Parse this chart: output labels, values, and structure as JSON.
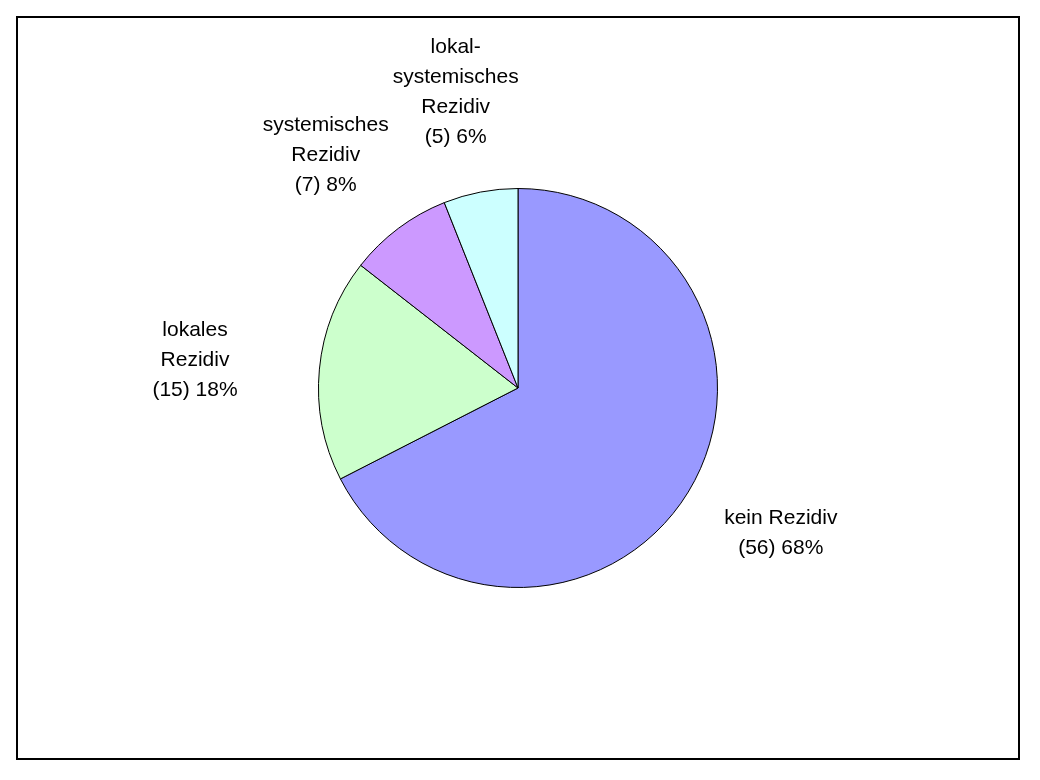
{
  "chart_data": {
    "type": "pie",
    "categories": [
      "kein Rezidiv",
      "lokales Rezidiv",
      "systemisches Rezidiv",
      "lokal-systemisches Rezidiv"
    ],
    "values": [
      56,
      15,
      7,
      5
    ],
    "value_labels": [
      "(56) 68%",
      "(15) 18%",
      "(7) 8%",
      "(5) 6%"
    ],
    "colors": [
      "#9999ff",
      "#ccffcc",
      "#cc99ff",
      "#ccffff"
    ]
  }
}
